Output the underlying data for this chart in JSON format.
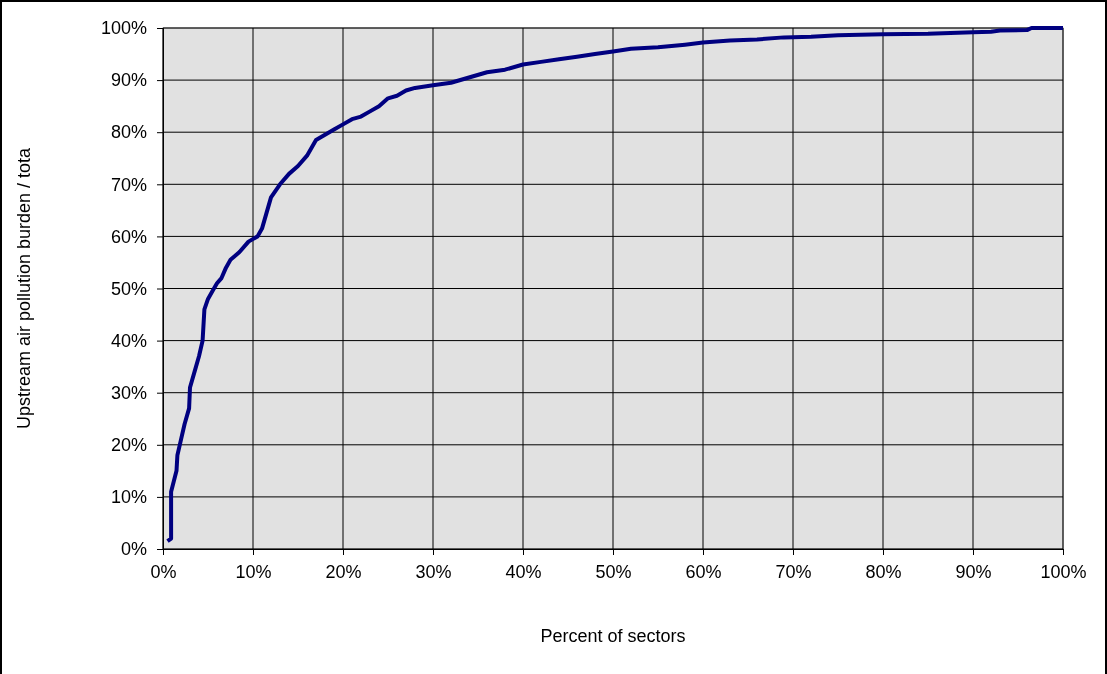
{
  "chart_data": {
    "type": "line",
    "xlabel": "Percent of sectors",
    "ylabel": "Upstream air pollution burden / tota",
    "x": [
      0.5,
      0.9,
      0.9,
      1.2,
      1.5,
      1.6,
      2,
      2.4,
      2.9,
      3,
      3.5,
      4,
      4.4,
      4.6,
      5,
      5.5,
      6,
      6.5,
      7,
      7.5,
      8.5,
      9.5,
      10.5,
      11,
      12,
      13,
      14,
      15,
      16,
      17,
      18,
      19,
      20,
      21,
      22,
      23,
      24,
      25,
      26,
      27,
      28,
      30,
      32,
      34,
      36,
      38,
      40,
      42,
      44,
      46,
      48,
      50,
      52,
      55,
      58,
      60,
      63,
      66,
      69,
      72,
      75,
      80,
      85,
      90,
      92,
      93,
      96,
      96.5,
      100
    ],
    "series": [
      {
        "color": "#000080",
        "values": [
          1.5,
          2,
          11,
          13,
          15,
          18,
          21,
          24,
          27,
          31,
          34,
          37,
          40,
          46,
          48,
          49.5,
          51,
          52,
          54,
          55.5,
          57,
          59,
          60,
          61.5,
          67.5,
          70,
          72,
          73.5,
          75.5,
          78.5,
          79.5,
          80.5,
          81.5,
          82.5,
          83,
          84,
          85,
          86.5,
          87,
          88,
          88.5,
          89,
          89.5,
          90.5,
          91.5,
          92,
          93,
          93.5,
          94,
          94.5,
          95,
          95.5,
          96,
          96.3,
          96.8,
          97.2,
          97.6,
          97.8,
          98.2,
          98.3,
          98.6,
          98.8,
          98.9,
          99.2,
          99.3,
          99.5,
          99.6,
          100,
          100
        ]
      }
    ],
    "xlim": [
      0,
      100
    ],
    "ylim": [
      0,
      100
    ],
    "xticks": [
      {
        "value": 0,
        "label": "0%"
      },
      {
        "value": 10,
        "label": "10%"
      },
      {
        "value": 20,
        "label": "20%"
      },
      {
        "value": 30,
        "label": "30%"
      },
      {
        "value": 40,
        "label": "40%"
      },
      {
        "value": 50,
        "label": "50%"
      },
      {
        "value": 60,
        "label": "60%"
      },
      {
        "value": 70,
        "label": "70%"
      },
      {
        "value": 80,
        "label": "80%"
      },
      {
        "value": 90,
        "label": "90%"
      },
      {
        "value": 100,
        "label": "100%"
      }
    ],
    "yticks": [
      {
        "value": 0,
        "label": "0%"
      },
      {
        "value": 10,
        "label": "10%"
      },
      {
        "value": 20,
        "label": "20%"
      },
      {
        "value": 30,
        "label": "30%"
      },
      {
        "value": 40,
        "label": "40%"
      },
      {
        "value": 50,
        "label": "50%"
      },
      {
        "value": 60,
        "label": "60%"
      },
      {
        "value": 70,
        "label": "70%"
      },
      {
        "value": 80,
        "label": "80%"
      },
      {
        "value": 90,
        "label": "90%"
      },
      {
        "value": 100,
        "label": "100%"
      }
    ],
    "grid": true,
    "marker": "none",
    "line_style": "solid"
  }
}
